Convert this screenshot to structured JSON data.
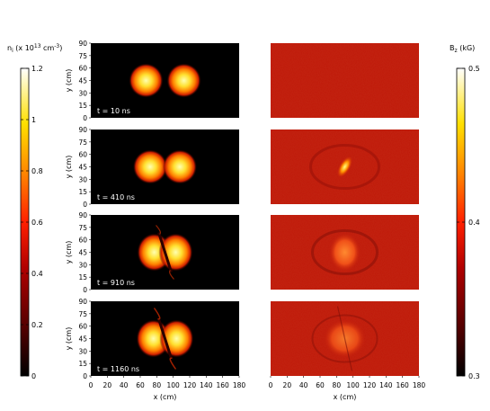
{
  "chart_data": {
    "type": "heatmap",
    "colorbars": {
      "left": {
        "label_main": "n",
        "label_sub": "i",
        "label_rest": " (x 10",
        "label_exp": "13",
        "label_unit": " cm",
        "label_unit_exp": "-3",
        "label_close": ")",
        "ticks": [
          "0",
          "0.2",
          "0.4",
          "0.6",
          "0.8",
          "1",
          "1.2"
        ],
        "range": [
          0,
          1.2
        ]
      },
      "right": {
        "label_main": "B",
        "label_sub": "z",
        "label_rest": " (kG)",
        "ticks": [
          "0.3",
          "0.4",
          "0.5"
        ],
        "range": [
          0.3,
          0.5
        ]
      }
    },
    "axes": {
      "xlabel": "x (cm)",
      "ylabel": "y (cm)",
      "xticks": [
        "0",
        "20",
        "40",
        "60",
        "80",
        "100",
        "120",
        "140",
        "160",
        "180"
      ],
      "yticks": [
        "0",
        "15",
        "30",
        "45",
        "60",
        "75",
        "90"
      ],
      "xlim": [
        0,
        180
      ],
      "ylim": [
        0,
        90
      ]
    },
    "panels": [
      {
        "time_label": "t = 10 ns",
        "t": 10
      },
      {
        "time_label": "t = 410 ns",
        "t": 410
      },
      {
        "time_label": "t = 910 ns",
        "t": 910
      },
      {
        "time_label": "t = 1160 ns",
        "t": 1160
      }
    ],
    "colors": {
      "background_density": "#000000",
      "background_field": "#c01808",
      "hot": [
        "#000000",
        "#500000",
        "#b00000",
        "#ff2000",
        "#ff8000",
        "#ffe000",
        "#ffffc0"
      ]
    }
  }
}
